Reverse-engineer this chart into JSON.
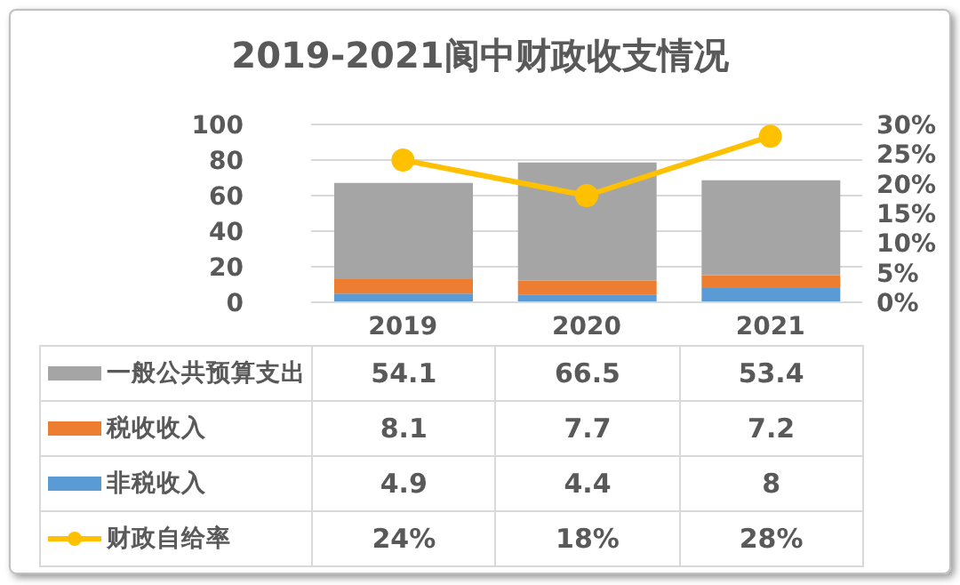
{
  "chart_data": {
    "type": "bar",
    "title": "2019-2021阆中财政收支情况",
    "categories": [
      "2019",
      "2020",
      "2021"
    ],
    "stacked": true,
    "series": [
      {
        "name": "非税收入",
        "color": "#5b9bd5",
        "values": [
          4.9,
          4.4,
          8
        ]
      },
      {
        "name": "税收收入",
        "color": "#ed7d31",
        "values": [
          8.1,
          7.7,
          7.2
        ]
      },
      {
        "name": "一般公共预算支出",
        "color": "#a5a5a5",
        "values": [
          54.1,
          66.5,
          53.4
        ]
      },
      {
        "name": "财政自给率",
        "type": "line",
        "axis": "y2",
        "color": "#ffc000",
        "values": [
          24,
          18,
          28
        ],
        "value_labels": [
          "24%",
          "18%",
          "28%"
        ]
      }
    ],
    "ylim": [
      0,
      100
    ],
    "yticks": [
      0,
      20,
      40,
      60,
      80,
      100
    ],
    "y2lim": [
      0,
      30
    ],
    "y2ticks": [
      {
        "value": 0,
        "label": "0%"
      },
      {
        "value": 5,
        "label": "5%"
      },
      {
        "value": 10,
        "label": "10%"
      },
      {
        "value": 15,
        "label": "15%"
      },
      {
        "value": 20,
        "label": "20%"
      },
      {
        "value": 25,
        "label": "25%"
      },
      {
        "value": 30,
        "label": "30%"
      }
    ],
    "grid": "y",
    "legend": "bottom",
    "marker": "circle",
    "data_labels": true
  }
}
